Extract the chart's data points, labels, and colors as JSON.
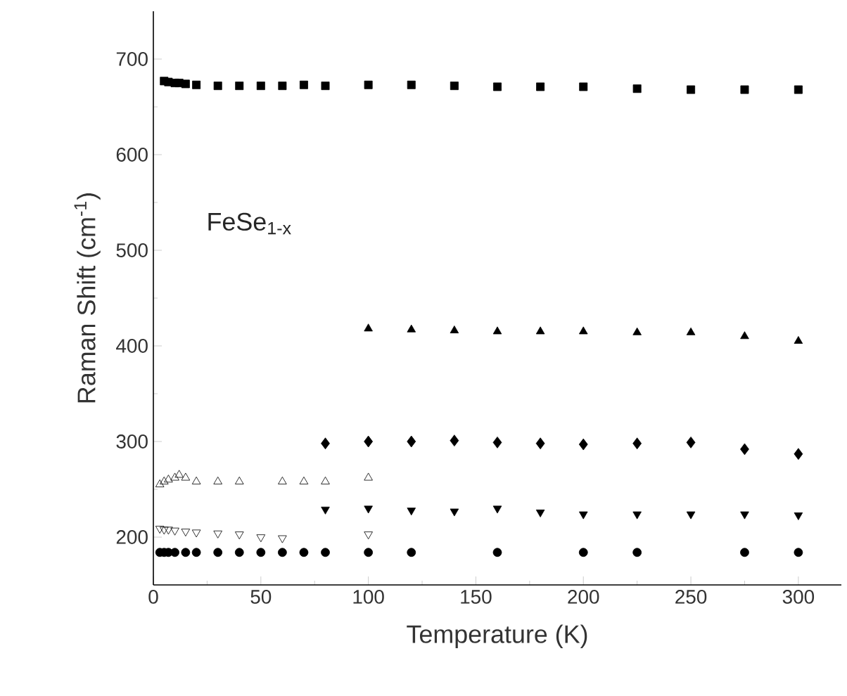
{
  "chart_data": {
    "type": "scatter",
    "xlabel": "Temperature (K)",
    "ylabel": "Raman Shift (cm$^{-1}$)",
    "annotations": [
      "FeSe$_{1-x}$"
    ],
    "xlim": [
      0,
      320
    ],
    "ylim": [
      150,
      750
    ],
    "xticks": [
      0,
      50,
      100,
      150,
      200,
      250,
      300
    ],
    "yticks": [
      200,
      300,
      400,
      500,
      600,
      700
    ],
    "series": [
      {
        "color": "#000000",
        "marker": "square",
        "x": [
          5,
          7,
          10,
          12,
          15,
          20,
          30,
          40,
          50,
          60,
          70,
          80,
          100,
          120,
          140,
          160,
          180,
          200,
          225,
          250,
          275,
          300
        ],
        "values": [
          677,
          676,
          675,
          675,
          674,
          673,
          672,
          672,
          672,
          672,
          673,
          672,
          673,
          673,
          672,
          671,
          671,
          671,
          669,
          668,
          668,
          668
        ]
      },
      {
        "color": "#000000",
        "marker": "triangle",
        "x": [
          100,
          120,
          140,
          160,
          180,
          200,
          225,
          250,
          275,
          300
        ],
        "values": [
          418,
          417,
          416,
          415,
          415,
          415,
          414,
          414,
          410,
          405
        ]
      },
      {
        "color": "#000000",
        "marker": "diamond",
        "x": [
          80,
          100,
          120,
          140,
          160,
          180,
          200,
          225,
          250,
          275,
          300
        ],
        "values": [
          298,
          300,
          300,
          301,
          299,
          298,
          297,
          298,
          299,
          292,
          287
        ]
      },
      {
        "color": "#000000",
        "marker": "triangle_open",
        "x": [
          3,
          5,
          7,
          10,
          12,
          15,
          20,
          30,
          40,
          60,
          70,
          80,
          100
        ],
        "values": [
          255,
          258,
          260,
          262,
          265,
          262,
          258,
          258,
          258,
          258,
          258,
          258,
          262
        ]
      },
      {
        "color": "#000000",
        "marker": "triangle_down",
        "x": [
          80,
          100,
          120,
          140,
          160,
          180,
          200,
          225,
          250,
          275,
          300
        ],
        "values": [
          229,
          230,
          228,
          227,
          230,
          226,
          224,
          224,
          224,
          224,
          223
        ]
      },
      {
        "color": "#000000",
        "marker": "triangle_down_open",
        "x": [
          3,
          5,
          7,
          10,
          15,
          20,
          30,
          40,
          50,
          60,
          100
        ],
        "values": [
          209,
          208,
          208,
          207,
          206,
          205,
          204,
          203,
          200,
          199,
          203
        ]
      },
      {
        "color": "#000000",
        "marker": "circle",
        "x": [
          3,
          5,
          7,
          10,
          15,
          20,
          30,
          40,
          50,
          60,
          70,
          80,
          100,
          120,
          160,
          200,
          225,
          275,
          300
        ],
        "values": [
          184,
          184,
          184,
          184,
          184,
          184,
          184,
          184,
          184,
          184,
          184,
          184,
          184,
          184,
          184,
          184,
          184,
          184,
          184
        ]
      }
    ]
  }
}
